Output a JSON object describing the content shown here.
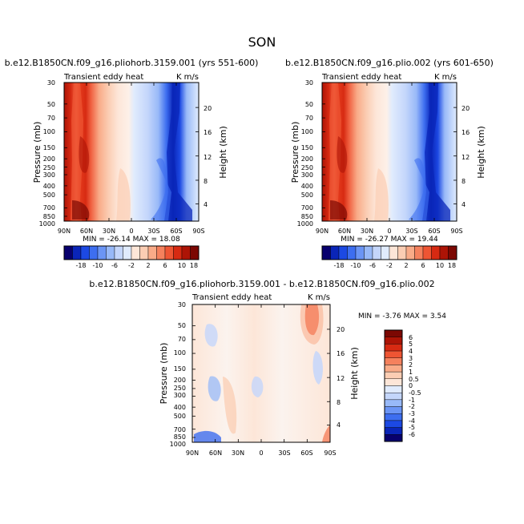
{
  "figure": {
    "title": "SON"
  },
  "chart_data": [
    {
      "type": "heatmap",
      "title": "b.e12.B1850CN.f09_g16.pliohorb.3159.001 (yrs 551-600)",
      "subtitle_left": "Transient eddy heat",
      "subtitle_right": "K m/s",
      "ylabel": "Pressure (mb)",
      "ylabel_right": "Height (km)",
      "x_ticks": [
        "90N",
        "60N",
        "30N",
        "0",
        "30S",
        "60S",
        "90S"
      ],
      "y_ticks": [
        "30",
        "50",
        "70",
        "100",
        "150",
        "200",
        "250",
        "300",
        "400",
        "500",
        "700",
        "850",
        "1000"
      ],
      "y_right_ticks": [
        "20",
        "16",
        "12",
        "8",
        "4"
      ],
      "stats": "MIN = -26.14   MAX =  18.08"
    },
    {
      "type": "heatmap",
      "title": "b.e12.B1850CN.f09_g16.plio.002 (yrs 601-650)",
      "subtitle_left": "Transient eddy heat",
      "subtitle_right": "K m/s",
      "ylabel": "Pressure (mb)",
      "ylabel_right": "Height (km)",
      "x_ticks": [
        "90N",
        "60N",
        "30N",
        "0",
        "30S",
        "60S",
        "90S"
      ],
      "y_ticks": [
        "30",
        "50",
        "70",
        "100",
        "150",
        "200",
        "250",
        "300",
        "400",
        "500",
        "700",
        "850",
        "1000"
      ],
      "y_right_ticks": [
        "20",
        "16",
        "12",
        "8",
        "4"
      ],
      "stats": "MIN = -26.27   MAX =  19.44"
    },
    {
      "type": "heatmap",
      "title": "b.e12.B1850CN.f09_g16.pliohorb.3159.001 - b.e12.B1850CN.f09_g16.plio.002",
      "subtitle_left": "Transient eddy heat",
      "subtitle_right": "K m/s",
      "ylabel": "Pressure (mb)",
      "ylabel_right": "Height (km)",
      "x_ticks": [
        "90N",
        "60N",
        "30N",
        "0",
        "30S",
        "60S",
        "90S"
      ],
      "y_ticks": [
        "30",
        "50",
        "70",
        "100",
        "150",
        "200",
        "250",
        "300",
        "400",
        "500",
        "700",
        "850",
        "1000"
      ],
      "y_right_ticks": [
        "20",
        "16",
        "12",
        "8",
        "4"
      ],
      "stats": "MIN = -3.76   MAX =  3.54"
    }
  ],
  "colorbars": {
    "top_labels": [
      "-18",
      "-10",
      "-6",
      "-2",
      "2",
      "6",
      "10",
      "18"
    ],
    "top_colors": [
      "#08006e",
      "#0a25b8",
      "#1c49e3",
      "#3d6ef0",
      "#6b95f5",
      "#98b9f8",
      "#c4d6fb",
      "#e0ebfd",
      "#fde6d8",
      "#fbcdb3",
      "#f9ab88",
      "#f5815d",
      "#ee5533",
      "#d72a12",
      "#ad1406",
      "#7c0803"
    ],
    "diff_labels": [
      "6",
      "5",
      "4",
      "3",
      "2",
      "1",
      "0.5",
      "0",
      "-0.5",
      "-1",
      "-2",
      "-3",
      "-4",
      "-5",
      "-6"
    ],
    "diff_colors": [
      "#7c0803",
      "#ad1406",
      "#d72a12",
      "#ee5533",
      "#f5815d",
      "#f9ab88",
      "#fbcdb3",
      "#fde6d8",
      "#e0ebfd",
      "#c4d6fb",
      "#98b9f8",
      "#6b95f5",
      "#3d6ef0",
      "#1c49e3",
      "#0a25b8",
      "#08006e"
    ]
  }
}
